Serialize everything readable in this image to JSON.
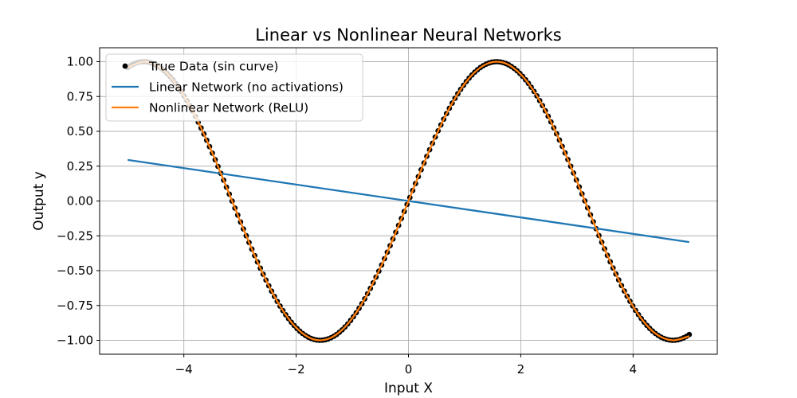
{
  "chart_data": {
    "type": "line",
    "title": "Linear vs Nonlinear Neural Networks",
    "xlabel": "Input X",
    "ylabel": "Output y",
    "xlim": [
      -5.5,
      5.5
    ],
    "ylim": [
      -1.1,
      1.1
    ],
    "x_ticks": [
      -4,
      -2,
      0,
      2,
      4
    ],
    "x_tick_labels": [
      "−4",
      "−2",
      "0",
      "2",
      "4"
    ],
    "y_ticks": [
      1.0,
      0.75,
      0.5,
      0.25,
      0.0,
      -0.25,
      -0.5,
      -0.75,
      -1.0
    ],
    "y_tick_labels": [
      "1.00",
      "0.75",
      "0.50",
      "0.25",
      "0.00",
      "−0.25",
      "−0.50",
      "−0.75",
      "−1.00"
    ],
    "grid": true,
    "legend_position": "upper-left",
    "colors": {
      "true_data": "#000000",
      "linear": "#1f77b4",
      "nonlinear": "#ff7f0e"
    },
    "series": [
      {
        "name": "True Data (sin curve)",
        "kind": "scatter",
        "function": "sin(x)",
        "x_range": [
          -5.0,
          5.0
        ],
        "n_points": 200
      },
      {
        "name": "Linear Network (no activations)",
        "kind": "line",
        "x": [
          -5.0,
          5.0
        ],
        "y": [
          0.295,
          -0.295
        ]
      },
      {
        "name": "Nonlinear Network (ReLU)",
        "kind": "line",
        "x": [
          -5.0,
          -4.7,
          -4.4,
          -4.1,
          -3.8,
          -3.5,
          -3.2,
          -2.9,
          -2.6,
          -2.3,
          -2.0,
          -1.7,
          -1.4,
          -1.1,
          -0.8,
          -0.5,
          -0.2,
          0.0,
          0.2,
          0.5,
          0.8,
          1.1,
          1.4,
          1.7,
          2.0,
          2.3,
          2.6,
          2.9,
          3.2,
          3.5,
          3.8,
          4.1,
          4.4,
          4.7,
          5.0
        ],
        "y": [
          0.959,
          1.0,
          0.952,
          0.818,
          0.612,
          0.351,
          0.058,
          -0.239,
          -0.516,
          -0.746,
          -0.909,
          -0.992,
          -0.985,
          -0.891,
          -0.717,
          -0.479,
          -0.199,
          0.0,
          0.199,
          0.479,
          0.717,
          0.891,
          0.985,
          0.992,
          0.909,
          0.746,
          0.516,
          0.239,
          -0.058,
          -0.351,
          -0.612,
          -0.818,
          -0.952,
          -1.0,
          -0.97
        ]
      }
    ]
  }
}
